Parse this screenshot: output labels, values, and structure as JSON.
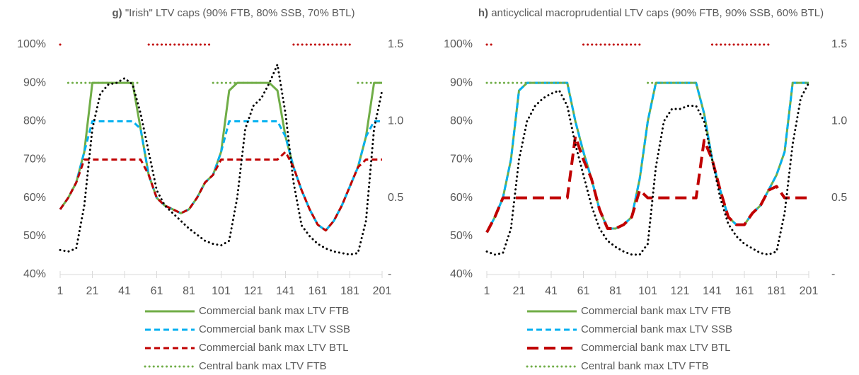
{
  "chart_data": [
    {
      "type": "line",
      "panel_label": "g)",
      "title": "\"Irish\" LTV caps (90% FTB, 80% SSB, 70% BTL)",
      "x": [
        1,
        6,
        11,
        16,
        21,
        26,
        31,
        36,
        41,
        46,
        51,
        56,
        61,
        66,
        71,
        76,
        81,
        86,
        91,
        96,
        101,
        106,
        111,
        116,
        121,
        126,
        131,
        136,
        141,
        146,
        151,
        156,
        161,
        166,
        171,
        176,
        181,
        186,
        191,
        196,
        201
      ],
      "xlim": [
        1,
        201
      ],
      "xticks": [
        1,
        21,
        41,
        61,
        81,
        101,
        121,
        141,
        161,
        181,
        201
      ],
      "ylim": [
        40,
        100
      ],
      "yticks": [
        {
          "value": 40,
          "label": "40%"
        },
        {
          "value": 50,
          "label": "50%"
        },
        {
          "value": 60,
          "label": "60%"
        },
        {
          "value": 70,
          "label": "70%"
        },
        {
          "value": 80,
          "label": "80%"
        },
        {
          "value": 90,
          "label": "90%"
        },
        {
          "value": 100,
          "label": "100%"
        }
      ],
      "y2lim": [
        0,
        1.5
      ],
      "y2ticks": [
        {
          "value": 0,
          "label": "-"
        },
        0.5,
        {
          "value": 1,
          "label": "1.0"
        },
        1.5
      ],
      "series": [
        {
          "name": "Commercial bank max LTV FTB",
          "color": "#70ad47",
          "dash": "solid",
          "values": [
            57,
            60,
            64,
            72,
            90,
            90,
            90,
            90,
            90,
            90,
            78,
            66,
            60,
            58,
            57,
            56,
            57,
            60,
            64,
            66,
            72,
            88,
            90,
            90,
            90,
            90,
            90,
            88,
            76,
            68,
            62,
            57,
            53,
            51.5,
            54,
            58,
            63,
            68,
            76,
            90,
            90
          ]
        },
        {
          "name": "Commercial bank max LTV SSB",
          "color": "#00b0f0",
          "dash": "dashed",
          "values": [
            57,
            60,
            64,
            72,
            80,
            80,
            80,
            80,
            80,
            80,
            78,
            66,
            60,
            58,
            57,
            56,
            57,
            60,
            64,
            66,
            72,
            80,
            80,
            80,
            80,
            80,
            80,
            80,
            76,
            68,
            62,
            57,
            53,
            51.5,
            54,
            58,
            63,
            68,
            76,
            80,
            80
          ]
        },
        {
          "name": "Commercial bank max LTV BTL",
          "color": "#c00000",
          "dash": "dashed",
          "values": [
            57,
            60,
            64,
            70,
            70,
            70,
            70,
            70,
            70,
            70,
            70,
            66,
            60,
            58,
            57,
            56,
            57,
            60,
            64,
            66,
            70,
            70,
            70,
            70,
            70,
            70,
            70,
            70,
            72,
            68,
            62,
            57,
            53,
            51.5,
            54,
            58,
            63,
            68,
            70,
            70,
            70
          ]
        },
        {
          "name": "Central bank max LTV FTB",
          "color": "#70ad47",
          "dash": "dotted",
          "values": [
            null,
            90,
            90,
            90,
            90,
            90,
            90,
            90,
            90,
            90,
            90,
            null,
            null,
            null,
            null,
            null,
            null,
            null,
            null,
            90,
            90,
            90,
            90,
            90,
            90,
            90,
            null,
            null,
            null,
            null,
            null,
            null,
            null,
            null,
            null,
            null,
            null,
            90,
            90,
            90,
            90
          ]
        },
        {
          "color": "#c00000",
          "dash": "dotted",
          "values": [
            100,
            null,
            null,
            null,
            null,
            null,
            null,
            null,
            null,
            null,
            null,
            100,
            100,
            100,
            100,
            100,
            100,
            100,
            100,
            100,
            null,
            null,
            null,
            null,
            null,
            null,
            null,
            null,
            null,
            100,
            100,
            100,
            100,
            100,
            100,
            100,
            100,
            null,
            null,
            null,
            null
          ]
        },
        {
          "color": "#000000",
          "dash": "dotted",
          "axis": "y2",
          "values": [
            0.16,
            0.15,
            0.17,
            0.45,
            0.95,
            1.18,
            1.24,
            1.25,
            1.28,
            1.24,
            1.05,
            0.8,
            0.55,
            0.45,
            0.4,
            0.35,
            0.3,
            0.26,
            0.22,
            0.2,
            0.19,
            0.22,
            0.5,
            0.95,
            1.1,
            1.15,
            1.25,
            1.37,
            1.05,
            0.6,
            0.32,
            0.25,
            0.2,
            0.17,
            0.15,
            0.14,
            0.13,
            0.14,
            0.35,
            0.95,
            1.2
          ]
        }
      ]
    },
    {
      "type": "line",
      "panel_label": "h)",
      "title": "anticyclical macroprudential LTV caps  (90% FTB, 90% SSB, 60% BTL)",
      "x": [
        1,
        6,
        11,
        16,
        21,
        26,
        31,
        36,
        41,
        46,
        51,
        56,
        61,
        66,
        71,
        76,
        81,
        86,
        91,
        96,
        101,
        106,
        111,
        116,
        121,
        126,
        131,
        136,
        141,
        146,
        151,
        156,
        161,
        166,
        171,
        176,
        181,
        186,
        191,
        196,
        201
      ],
      "xlim": [
        1,
        201
      ],
      "xticks": [
        1,
        21,
        41,
        61,
        81,
        101,
        121,
        141,
        161,
        181,
        201
      ],
      "ylim": [
        40,
        100
      ],
      "yticks": [
        {
          "value": 40,
          "label": "40%"
        },
        {
          "value": 50,
          "label": "50%"
        },
        {
          "value": 60,
          "label": "60%"
        },
        {
          "value": 70,
          "label": "70%"
        },
        {
          "value": 80,
          "label": "80%"
        },
        {
          "value": 90,
          "label": "90%"
        },
        {
          "value": 100,
          "label": "100%"
        }
      ],
      "y2lim": [
        0,
        1.5
      ],
      "y2ticks": [
        {
          "value": 0,
          "label": "-"
        },
        0.5,
        {
          "value": 1,
          "label": "1.0"
        },
        1.5
      ],
      "series": [
        {
          "name": "Commercial bank max LTV FTB",
          "color": "#70ad47",
          "dash": "solid",
          "values": [
            51,
            55,
            60,
            70,
            88,
            90,
            90,
            90,
            90,
            90,
            90,
            80,
            72,
            65,
            57,
            52,
            52,
            53,
            55,
            65,
            80,
            90,
            90,
            90,
            90,
            90,
            90,
            82,
            70,
            62,
            55,
            53,
            53,
            56,
            58,
            62,
            66,
            72,
            90,
            90,
            90
          ]
        },
        {
          "name": "Commercial bank max LTV SSB",
          "color": "#00b0f0",
          "dash": "dashed",
          "values": [
            51,
            55,
            60,
            70,
            88,
            90,
            90,
            90,
            90,
            90,
            90,
            80,
            72,
            65,
            57,
            52,
            52,
            53,
            55,
            65,
            80,
            90,
            90,
            90,
            90,
            90,
            90,
            82,
            70,
            62,
            55,
            53,
            53,
            56,
            58,
            62,
            66,
            72,
            90,
            90,
            90
          ]
        },
        {
          "name": "Commercial bank max LTV BTL",
          "color": "#c00000",
          "dash": "long-dashed",
          "values": [
            51,
            55,
            60,
            60,
            60,
            60,
            60,
            60,
            60,
            60,
            60,
            76,
            70,
            65,
            57,
            52,
            52,
            53,
            55,
            62,
            60,
            60,
            60,
            60,
            60,
            60,
            60,
            75,
            70,
            62,
            55,
            53,
            53,
            56,
            58,
            62,
            63,
            60,
            60,
            60,
            60
          ]
        },
        {
          "name": "Central bank max LTV FTB",
          "color": "#70ad47",
          "dash": "dotted",
          "values": [
            90,
            90,
            90,
            90,
            90,
            90,
            90,
            90,
            90,
            90,
            90,
            null,
            null,
            null,
            null,
            null,
            null,
            null,
            null,
            null,
            90,
            90,
            90,
            90,
            90,
            90,
            90,
            null,
            null,
            null,
            null,
            null,
            null,
            null,
            null,
            null,
            null,
            null,
            90,
            90,
            90
          ]
        },
        {
          "color": "#c00000",
          "dash": "dotted",
          "values": [
            100,
            100,
            null,
            null,
            null,
            null,
            null,
            null,
            null,
            null,
            null,
            null,
            100,
            100,
            100,
            100,
            100,
            100,
            100,
            100,
            null,
            null,
            null,
            null,
            null,
            null,
            null,
            null,
            100,
            100,
            100,
            100,
            100,
            100,
            100,
            100,
            null,
            null,
            null,
            null,
            null
          ]
        },
        {
          "color": "#000000",
          "dash": "dotted",
          "axis": "y2",
          "values": [
            0.15,
            0.13,
            0.14,
            0.3,
            0.75,
            1.0,
            1.1,
            1.15,
            1.18,
            1.2,
            1.1,
            0.85,
            0.65,
            0.45,
            0.3,
            0.22,
            0.18,
            0.15,
            0.13,
            0.13,
            0.2,
            0.7,
            1.0,
            1.08,
            1.08,
            1.1,
            1.1,
            1.0,
            0.75,
            0.5,
            0.33,
            0.25,
            0.2,
            0.17,
            0.14,
            0.13,
            0.15,
            0.4,
            0.85,
            1.15,
            1.25
          ]
        }
      ]
    }
  ]
}
